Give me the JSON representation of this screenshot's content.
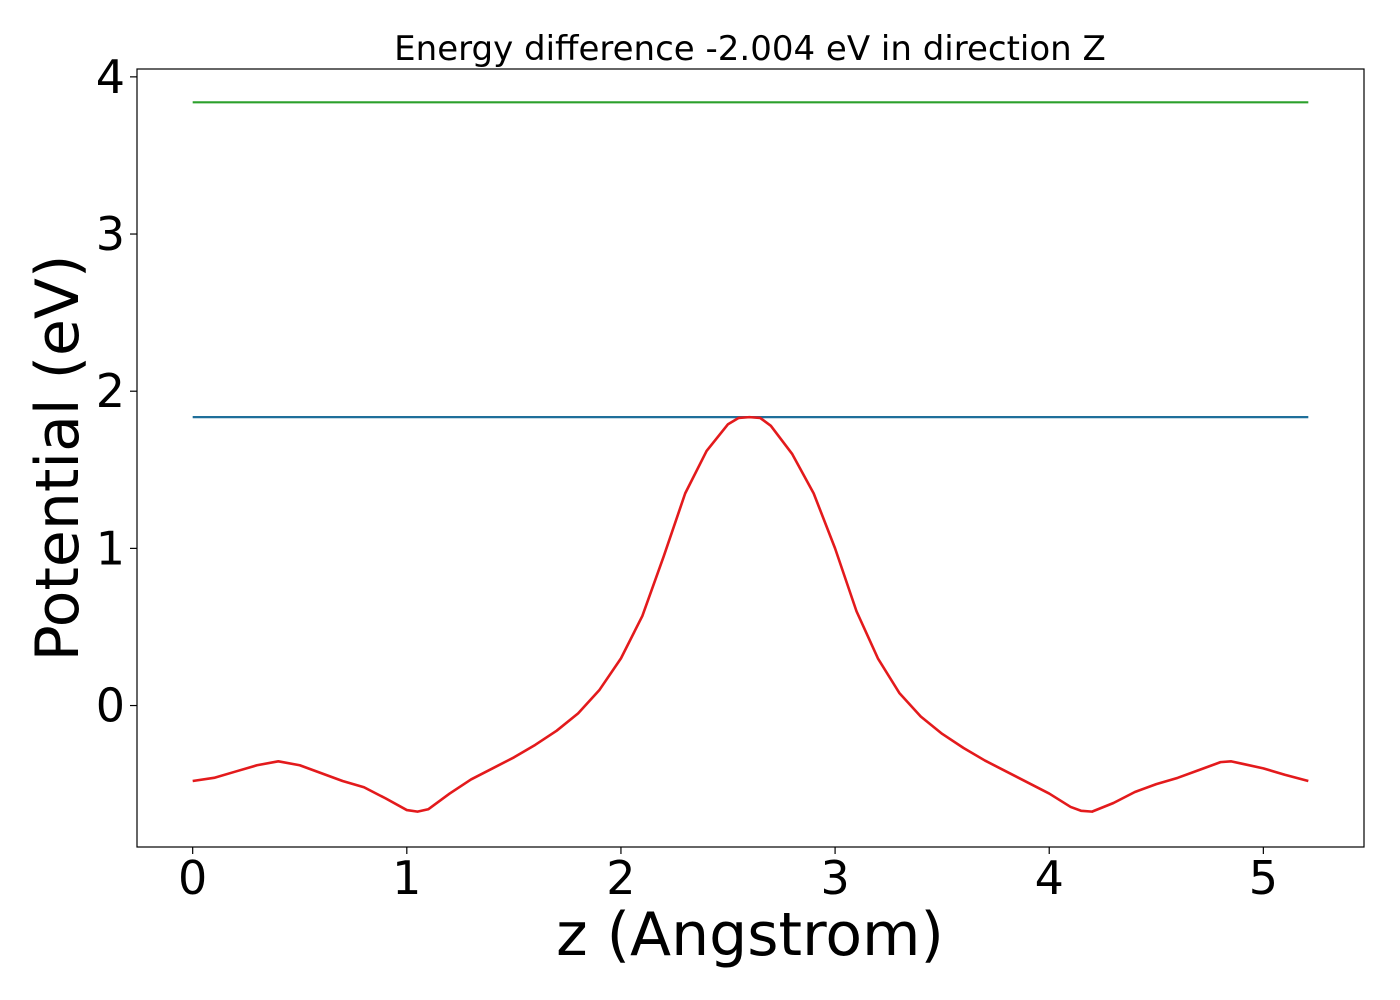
{
  "chart_data": {
    "type": "line",
    "title": "Energy difference -2.004 eV in direction Z",
    "xlabel": "z (Angstrom)",
    "ylabel": "Potential (eV)",
    "xlim": [
      -0.26,
      5.47
    ],
    "ylim": [
      -0.9,
      4.05
    ],
    "xticks": [
      0,
      1,
      2,
      3,
      4,
      5
    ],
    "yticks": [
      0,
      1,
      2,
      3,
      4
    ],
    "grid": false,
    "legend": "none",
    "series": [
      {
        "color": "#e31a1c",
        "x": [
          0.0,
          0.1,
          0.2,
          0.3,
          0.4,
          0.5,
          0.6,
          0.7,
          0.8,
          0.9,
          1.0,
          1.05,
          1.1,
          1.2,
          1.3,
          1.4,
          1.5,
          1.6,
          1.7,
          1.8,
          1.9,
          2.0,
          2.1,
          2.2,
          2.3,
          2.4,
          2.5,
          2.55,
          2.6,
          2.65,
          2.7,
          2.8,
          2.9,
          3.0,
          3.1,
          3.2,
          3.3,
          3.4,
          3.5,
          3.6,
          3.7,
          3.8,
          3.9,
          4.0,
          4.1,
          4.15,
          4.2,
          4.3,
          4.4,
          4.5,
          4.6,
          4.7,
          4.8,
          4.85,
          4.9,
          5.0,
          5.1,
          5.21
        ],
        "values": [
          -0.48,
          -0.46,
          -0.42,
          -0.38,
          -0.355,
          -0.38,
          -0.43,
          -0.48,
          -0.52,
          -0.59,
          -0.665,
          -0.675,
          -0.66,
          -0.56,
          -0.47,
          -0.4,
          -0.33,
          -0.25,
          -0.16,
          -0.05,
          0.1,
          0.3,
          0.57,
          0.95,
          1.35,
          1.62,
          1.79,
          1.83,
          1.835,
          1.83,
          1.78,
          1.6,
          1.35,
          1.0,
          0.6,
          0.3,
          0.08,
          -0.07,
          -0.18,
          -0.27,
          -0.35,
          -0.42,
          -0.49,
          -0.56,
          -0.645,
          -0.67,
          -0.675,
          -0.62,
          -0.55,
          -0.5,
          -0.46,
          -0.41,
          -0.36,
          -0.355,
          -0.37,
          -0.4,
          -0.44,
          -0.48
        ]
      },
      {
        "color": "#1f6f9a",
        "x": [
          0.0,
          5.21
        ],
        "values": [
          1.835,
          1.835
        ]
      },
      {
        "color": "#2ca02c",
        "x": [
          0.0,
          5.21
        ],
        "values": [
          3.838,
          3.838
        ]
      }
    ]
  }
}
